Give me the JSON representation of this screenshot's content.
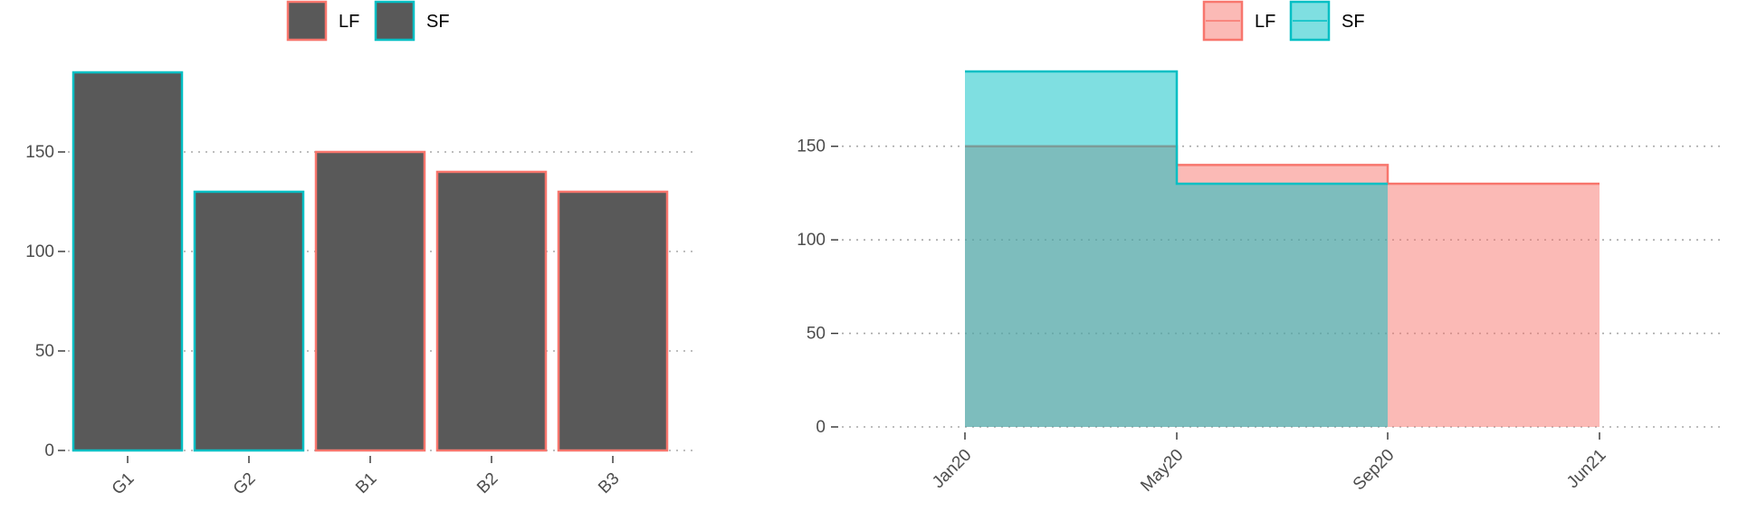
{
  "chart_data": [
    {
      "type": "bar",
      "categories": [
        "G1",
        "G2",
        "B1",
        "B2",
        "B3"
      ],
      "values": [
        190,
        130,
        150,
        140,
        130
      ],
      "groups": [
        "SF",
        "SF",
        "LF",
        "LF",
        "LF"
      ],
      "fill_color": "#595959",
      "legend": [
        {
          "label": "LF",
          "color": "#F8766D"
        },
        {
          "label": "SF",
          "color": "#00BFC4"
        }
      ],
      "legend_position": "top",
      "ylim": [
        0,
        190
      ],
      "yticks": [
        0,
        50,
        100,
        150
      ],
      "grid": "horizontal dotted",
      "title": "",
      "xlabel": "",
      "ylabel": ""
    },
    {
      "type": "area",
      "step": true,
      "x_ticks": [
        "Jan20",
        "May20",
        "Sep20",
        "Jun21"
      ],
      "series": [
        {
          "name": "LF",
          "color": "#F8766D",
          "fill": "#F8766D",
          "x": [
            "Jan20",
            "May20",
            "Sep20",
            "Jun21"
          ],
          "y": [
            150,
            140,
            130,
            130
          ]
        },
        {
          "name": "SF",
          "color": "#00BFC4",
          "fill": "#00BFC4",
          "x": [
            "Jan20",
            "May20",
            "Sep20"
          ],
          "y": [
            190,
            130,
            130
          ]
        }
      ],
      "legend_position": "top",
      "ylim": [
        0,
        190
      ],
      "yticks": [
        0,
        50,
        100,
        150
      ],
      "grid": "horizontal dotted",
      "title": "",
      "xlabel": "",
      "ylabel": ""
    }
  ]
}
